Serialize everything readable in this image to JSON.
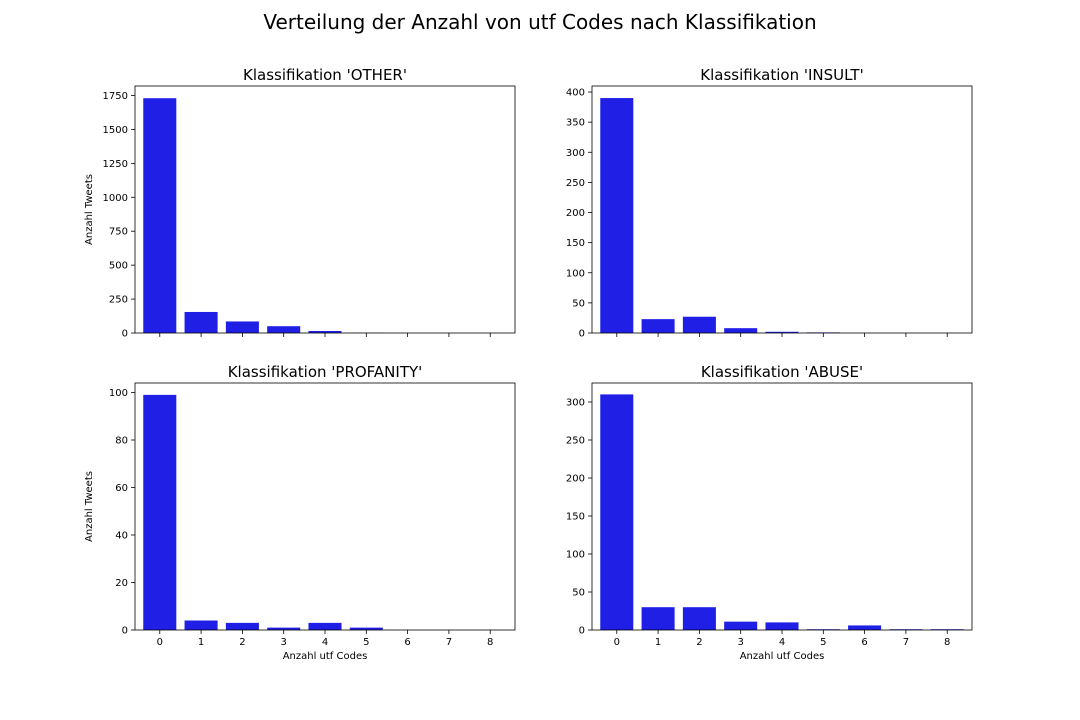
{
  "figure": {
    "title": "Verteilung der Anzahl von utf Codes nach Klassifikation",
    "bar_color": "#1f1fe6"
  },
  "chart_data": [
    {
      "type": "bar",
      "title": "Klassifikation 'OTHER'",
      "xlabel": "",
      "ylabel": "Anzahl Tweets",
      "categories": [
        "0",
        "1",
        "2",
        "3",
        "4",
        "5",
        "6",
        "7",
        "8"
      ],
      "values": [
        1730,
        155,
        85,
        50,
        15,
        1,
        0,
        0,
        0
      ],
      "ylim": [
        0,
        1820
      ],
      "yticks": [
        0,
        250,
        500,
        750,
        1000,
        1250,
        1500,
        1750
      ],
      "show_xticklabels": false,
      "grid": false
    },
    {
      "type": "bar",
      "title": "Klassifikation 'INSULT'",
      "xlabel": "",
      "ylabel": "",
      "categories": [
        "0",
        "1",
        "2",
        "3",
        "4",
        "5",
        "6",
        "7",
        "8"
      ],
      "values": [
        390,
        23,
        27,
        8,
        2,
        1,
        0,
        0,
        0
      ],
      "ylim": [
        0,
        410
      ],
      "yticks": [
        0,
        50,
        100,
        150,
        200,
        250,
        300,
        350,
        400
      ],
      "show_xticklabels": false,
      "grid": false
    },
    {
      "type": "bar",
      "title": "Klassifikation 'PROFANITY'",
      "xlabel": "Anzahl utf Codes",
      "ylabel": "Anzahl Tweets",
      "categories": [
        "0",
        "1",
        "2",
        "3",
        "4",
        "5",
        "6",
        "7",
        "8"
      ],
      "values": [
        99,
        4,
        3,
        1,
        3,
        1,
        0,
        0,
        0
      ],
      "ylim": [
        0,
        104
      ],
      "yticks": [
        0,
        20,
        40,
        60,
        80,
        100
      ],
      "show_xticklabels": true,
      "grid": false
    },
    {
      "type": "bar",
      "title": "Klassifikation 'ABUSE'",
      "xlabel": "Anzahl utf Codes",
      "ylabel": "",
      "categories": [
        "0",
        "1",
        "2",
        "3",
        "4",
        "5",
        "6",
        "7",
        "8"
      ],
      "values": [
        310,
        30,
        30,
        11,
        10,
        1,
        6,
        1,
        1
      ],
      "ylim": [
        0,
        325
      ],
      "yticks": [
        0,
        50,
        100,
        150,
        200,
        250,
        300
      ],
      "show_xticklabels": true,
      "grid": false
    }
  ]
}
